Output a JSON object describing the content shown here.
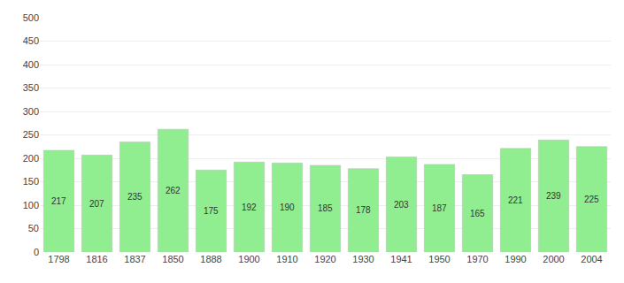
{
  "chart_data": {
    "type": "bar",
    "categories": [
      "1798",
      "1816",
      "1837",
      "1850",
      "1888",
      "1900",
      "1910",
      "1920",
      "1930",
      "1941",
      "1950",
      "1970",
      "1990",
      "2000",
      "2004"
    ],
    "values": [
      217,
      207,
      235,
      262,
      175,
      192,
      190,
      185,
      178,
      203,
      187,
      165,
      221,
      239,
      225
    ],
    "color": "#90ee90",
    "ylim": [
      0,
      500
    ],
    "yticks": [
      0,
      50,
      100,
      150,
      200,
      250,
      300,
      350,
      400,
      450,
      500
    ],
    "grid": true,
    "data_labels": true
  }
}
